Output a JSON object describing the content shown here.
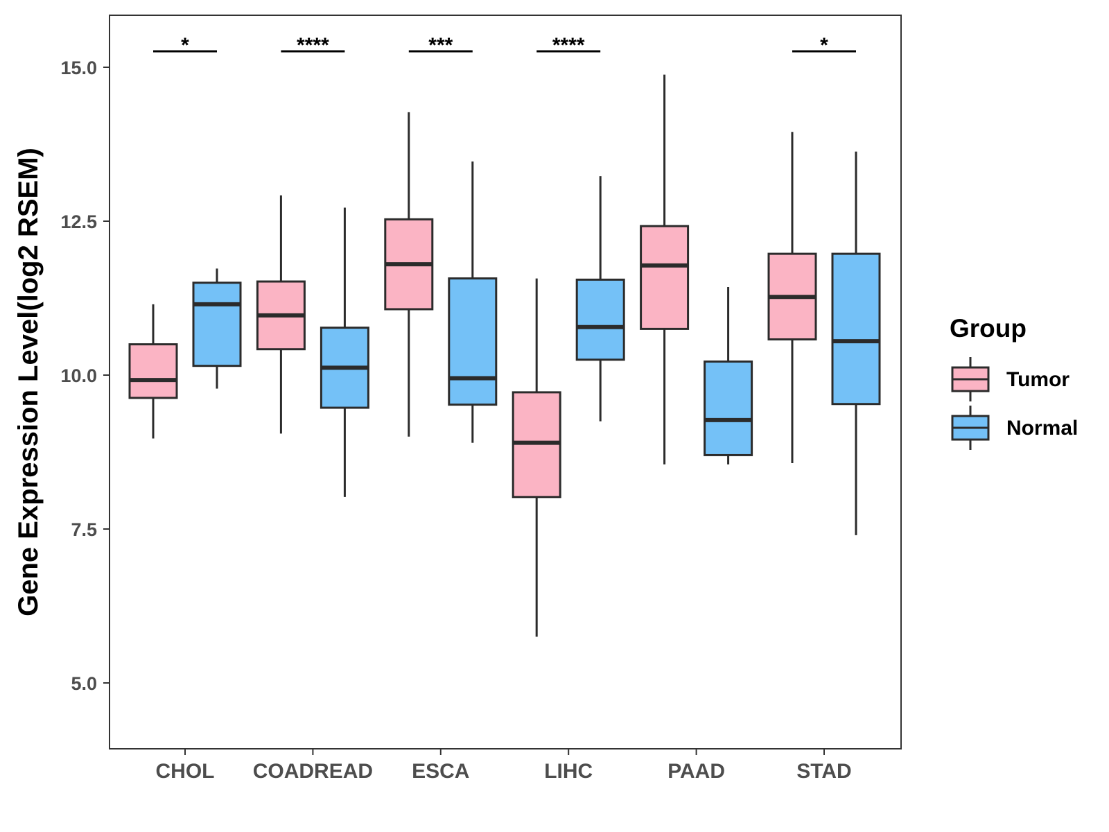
{
  "chart_data": {
    "type": "boxplot",
    "ylabel": "Gene Expression Level(log2 RSEM)",
    "xlabel": "",
    "ylim": [
      4.2,
      15.8
    ],
    "yticks": [
      5.0,
      7.5,
      10.0,
      12.5,
      15.0
    ],
    "ytick_labels": [
      "5.0",
      "7.5",
      "10.0",
      "12.5",
      "15.0"
    ],
    "categories": [
      "CHOL",
      "COADREAD",
      "ESCA",
      "LIHC",
      "PAAD",
      "STAD"
    ],
    "legend": {
      "title": "Group",
      "position": "right",
      "entries": [
        {
          "name": "Tumor",
          "color": "#fbb4c4"
        },
        {
          "name": "Normal",
          "color": "#74c1f7"
        }
      ]
    },
    "series": [
      {
        "name": "Tumor",
        "color": "#fbb4c4",
        "boxes": [
          {
            "min": 8.97,
            "q1": 9.63,
            "median": 9.92,
            "q3": 10.5,
            "max": 11.15
          },
          {
            "min": 9.05,
            "q1": 10.42,
            "median": 10.97,
            "q3": 11.52,
            "max": 12.92
          },
          {
            "min": 9.0,
            "q1": 11.07,
            "median": 11.8,
            "q3": 12.53,
            "max": 14.27
          },
          {
            "min": 5.75,
            "q1": 8.02,
            "median": 8.9,
            "q3": 9.72,
            "max": 11.57
          },
          {
            "min": 8.55,
            "q1": 10.75,
            "median": 11.78,
            "q3": 12.42,
            "max": 14.88
          },
          {
            "min": 8.57,
            "q1": 10.58,
            "median": 11.27,
            "q3": 11.97,
            "max": 13.95
          }
        ]
      },
      {
        "name": "Normal",
        "color": "#74c1f7",
        "boxes": [
          {
            "min": 9.78,
            "q1": 10.15,
            "median": 11.15,
            "q3": 11.5,
            "max": 11.73
          },
          {
            "min": 8.02,
            "q1": 9.47,
            "median": 10.12,
            "q3": 10.77,
            "max": 12.72
          },
          {
            "min": 8.9,
            "q1": 9.52,
            "median": 9.95,
            "q3": 11.57,
            "max": 13.47
          },
          {
            "min": 9.25,
            "q1": 10.25,
            "median": 10.78,
            "q3": 11.55,
            "max": 13.23
          },
          {
            "min": 8.55,
            "q1": 8.7,
            "median": 9.27,
            "q3": 10.22,
            "max": 11.43
          },
          {
            "min": 7.4,
            "q1": 9.53,
            "median": 10.55,
            "q3": 11.97,
            "max": 13.63
          }
        ]
      }
    ],
    "significance": [
      {
        "category": "CHOL",
        "label": "*"
      },
      {
        "category": "COADREAD",
        "label": "****"
      },
      {
        "category": "ESCA",
        "label": "***"
      },
      {
        "category": "LIHC",
        "label": "****"
      },
      {
        "category": "PAAD",
        "label": ""
      },
      {
        "category": "STAD",
        "label": "*"
      }
    ]
  }
}
